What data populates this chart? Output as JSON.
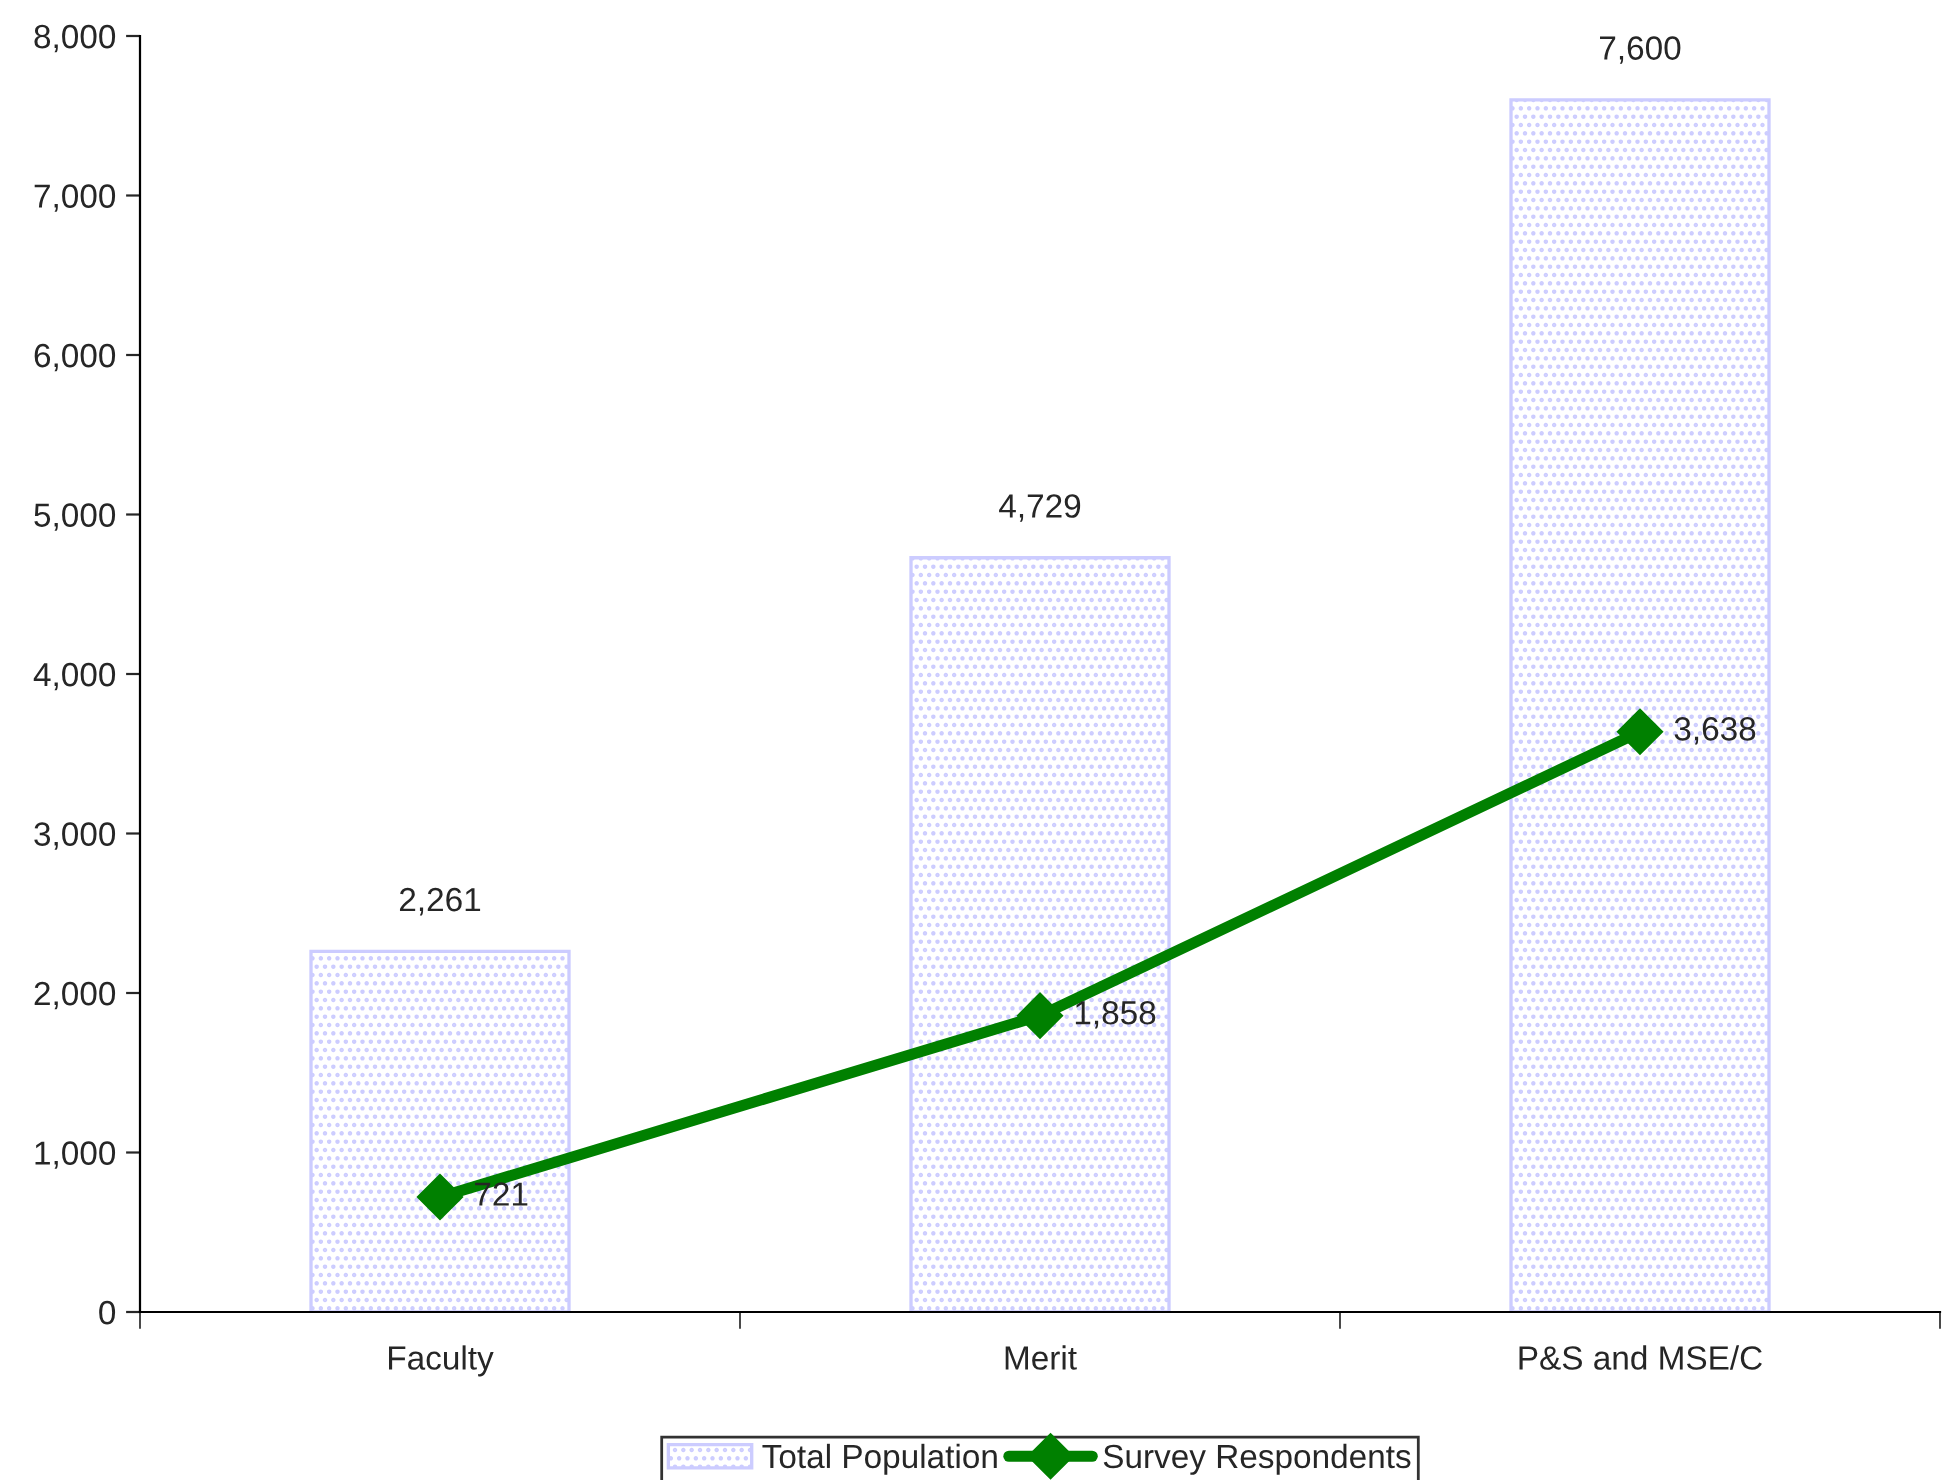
{
  "chart_data": {
    "type": "bar",
    "categories": [
      "Faculty",
      "Merit",
      "P&S and MSE/C"
    ],
    "series": [
      {
        "name": "Total Population",
        "color": "#ccccff",
        "values": [
          2261,
          4729,
          7600
        ],
        "value_labels": [
          "2,261",
          "4,729",
          "7,600"
        ]
      },
      {
        "name": "Survey Respondents",
        "type": "line",
        "color": "#008000",
        "values": [
          721,
          1858,
          3638
        ],
        "value_labels": [
          "721",
          "1,858",
          "3,638"
        ],
        "marker": "diamond"
      }
    ],
    "ylim": [
      0,
      8000
    ],
    "yticks": [
      {
        "value": 0,
        "label": "0"
      },
      {
        "value": 1000,
        "label": "1,000"
      },
      {
        "value": 2000,
        "label": "2,000"
      },
      {
        "value": 3000,
        "label": "3,000"
      },
      {
        "value": 4000,
        "label": "4,000"
      },
      {
        "value": 5000,
        "label": "5,000"
      },
      {
        "value": 6000,
        "label": "6,000"
      },
      {
        "value": 7000,
        "label": "7,000"
      },
      {
        "value": 8000,
        "label": "8,000"
      }
    ],
    "grid": false,
    "legend": "bottom"
  }
}
